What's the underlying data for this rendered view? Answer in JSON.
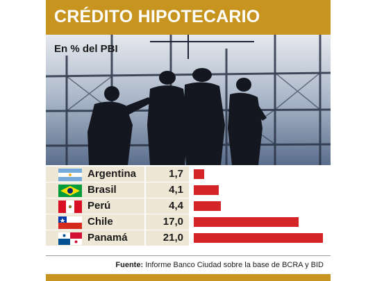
{
  "header": {
    "title": "CRÉDITO HIPOTECARIO"
  },
  "subtitle": "En % del PBI",
  "colors": {
    "accent": "#c6941f",
    "bar": "#d52427",
    "row_bg": "#efe7d5"
  },
  "photo": {
    "icon": "construction-workers-silhouette-photo"
  },
  "rows": [
    {
      "country": "Argentina",
      "value_label": "1,7",
      "flag": "argentina-flag-icon"
    },
    {
      "country": "Brasil",
      "value_label": "4,1",
      "flag": "brazil-flag-icon"
    },
    {
      "country": "Perú",
      "value_label": "4,4",
      "flag": "peru-flag-icon"
    },
    {
      "country": "Chile",
      "value_label": "17,0",
      "flag": "chile-flag-icon"
    },
    {
      "country": "Panamá",
      "value_label": "21,0",
      "flag": "panama-flag-icon"
    }
  ],
  "source": {
    "label": "Fuente:",
    "text": "Informe Banco Ciudad sobre la base de BCRA y BID"
  },
  "chart_data": {
    "type": "bar",
    "orientation": "horizontal",
    "title": "CRÉDITO HIPOTECARIO",
    "subtitle": "En % del PBI",
    "categories": [
      "Argentina",
      "Brasil",
      "Perú",
      "Chile",
      "Panamá"
    ],
    "values": [
      1.7,
      4.1,
      4.4,
      17.0,
      21.0
    ],
    "xlim": [
      0,
      21
    ],
    "grid": false
  }
}
